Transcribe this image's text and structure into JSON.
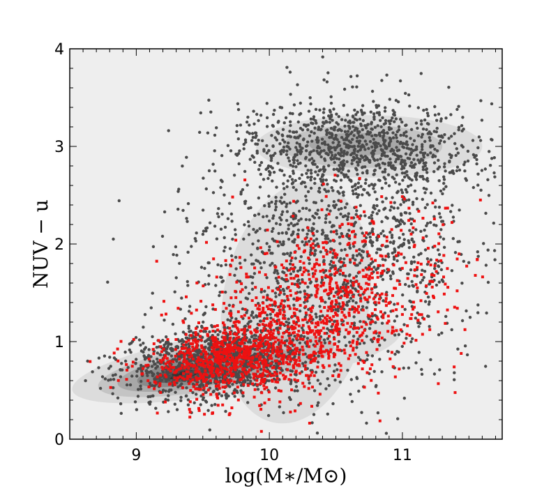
{
  "chart_data": {
    "type": "scatter",
    "title": "",
    "xlabel": "log(M∗/M⊙)",
    "ylabel": "NUV − u",
    "xlim": [
      8.5,
      11.75
    ],
    "ylim": [
      0,
      4
    ],
    "x_ticks": [
      9,
      10,
      11
    ],
    "x_tick_labels": [
      "9",
      "10",
      "11"
    ],
    "y_ticks": [
      0,
      1,
      2,
      3,
      4
    ],
    "y_tick_labels": [
      "0",
      "1",
      "2",
      "3",
      "4"
    ],
    "grid": false,
    "legend": "none",
    "colors": {
      "plot_background": "#eeeeee",
      "contour_level_1": "#dcdcdc",
      "contour_level_2": "#c4c4c4",
      "contour_level_3": "#a8a8a8",
      "contour_level_4": "#8a8a8a",
      "contour_level_5": "#5e5e5e",
      "contour_level_6": "#333333",
      "series_gray": "#4a4a4a",
      "series_red": "#ee1111"
    },
    "contours": [
      {
        "level": 1,
        "regions": [
          {
            "center": [
              9.75,
              0.8
            ],
            "radius": [
              1.25,
              0.32
            ],
            "angle_deg": 10
          },
          {
            "center": [
              10.2,
              1.4
            ],
            "radius": [
              0.55,
              1.25
            ],
            "angle_deg": -10
          },
          {
            "center": [
              10.75,
              3.0
            ],
            "radius": [
              0.85,
              0.32
            ],
            "angle_deg": 0
          }
        ]
      },
      {
        "level": 2,
        "regions": [
          {
            "center": [
              9.6,
              0.75
            ],
            "radius": [
              0.9,
              0.24
            ],
            "angle_deg": 10
          },
          {
            "center": [
              10.7,
              3.0
            ],
            "radius": [
              0.6,
              0.22
            ],
            "angle_deg": 0
          }
        ]
      },
      {
        "level": 3,
        "regions": [
          {
            "center": [
              9.5,
              0.72
            ],
            "radius": [
              0.65,
              0.18
            ],
            "angle_deg": 10
          },
          {
            "center": [
              10.65,
              3.02
            ],
            "radius": [
              0.35,
              0.12
            ],
            "angle_deg": 0
          }
        ]
      },
      {
        "level": 4,
        "regions": [
          {
            "center": [
              9.45,
              0.7
            ],
            "radius": [
              0.45,
              0.13
            ],
            "angle_deg": 10
          }
        ]
      },
      {
        "level": 5,
        "regions": [
          {
            "center": [
              9.4,
              0.68
            ],
            "radius": [
              0.28,
              0.08
            ],
            "angle_deg": 10
          }
        ]
      },
      {
        "level": 6,
        "regions": [
          {
            "center": [
              9.35,
              0.66
            ],
            "radius": [
              0.12,
              0.04
            ],
            "angle_deg": 10
          }
        ]
      }
    ],
    "series": [
      {
        "marker": "circle",
        "color_key": "series_gray",
        "count": 3400,
        "components": [
          {
            "weight": 0.35,
            "x_mean": 9.6,
            "x_sd": 0.35,
            "y_mean": 0.8,
            "y_sd": 0.18,
            "tilt": 0.15
          },
          {
            "weight": 0.25,
            "x_mean": 10.7,
            "x_sd": 0.45,
            "y_mean": 3.0,
            "y_sd": 0.22,
            "tilt": 0.0
          },
          {
            "weight": 0.4,
            "x_mean": 10.5,
            "x_sd": 0.55,
            "y_mean": 1.9,
            "y_sd": 0.7,
            "tilt": 0.2
          }
        ],
        "x_range": [
          8.6,
          11.7
        ],
        "y_range": [
          0.05,
          3.95
        ]
      },
      {
        "marker": "square",
        "color_key": "series_red",
        "count": 1600,
        "components": [
          {
            "weight": 0.45,
            "x_mean": 9.75,
            "x_sd": 0.32,
            "y_mean": 0.85,
            "y_sd": 0.18,
            "tilt": 0.2
          },
          {
            "weight": 0.55,
            "x_mean": 10.4,
            "x_sd": 0.5,
            "y_mean": 1.35,
            "y_sd": 0.45,
            "tilt": 0.35
          }
        ],
        "x_range": [
          8.55,
          11.65
        ],
        "y_range": [
          0.05,
          3.4
        ]
      }
    ]
  }
}
